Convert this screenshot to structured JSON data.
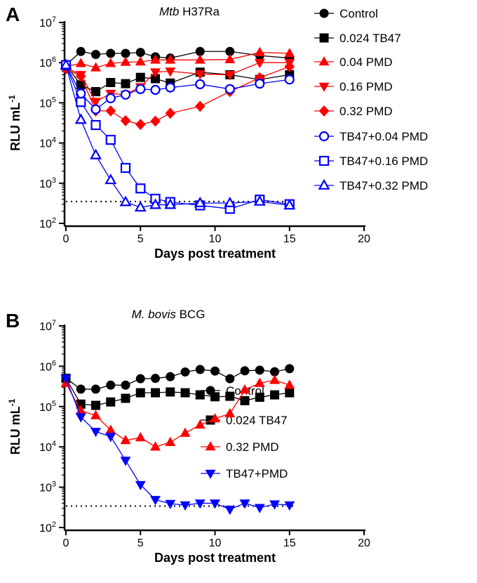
{
  "chart_data": [
    {
      "type": "line",
      "panel_label": "A",
      "title_italic": "Mtb",
      "title_rest": " H37Ra",
      "xlabel": "Days post treatment",
      "ylabel": "RLU mL",
      "ylabel_sup": "-1",
      "yscale": "log",
      "ylim": [
        100,
        10000000
      ],
      "xlim": [
        0,
        20
      ],
      "xticks": [
        0,
        5,
        10,
        15,
        20
      ],
      "yticks_exp": [
        2,
        3,
        4,
        5,
        6,
        7
      ],
      "detection_limit": 350,
      "legend_position": "top-right",
      "series": [
        {
          "name": "Control",
          "color": "#000000",
          "marker": "circle",
          "filled": true,
          "x": [
            0,
            1,
            2,
            3,
            4,
            5,
            6,
            7,
            9,
            11,
            13,
            15
          ],
          "y": [
            870000,
            1900000,
            1600000,
            1700000,
            1700000,
            1800000,
            1400000,
            1300000,
            1900000,
            1900000,
            1500000,
            1300000
          ]
        },
        {
          "name": "0.024 TB47",
          "color": "#000000",
          "marker": "square",
          "filled": true,
          "x": [
            0,
            1,
            2,
            3,
            4,
            5,
            6,
            7,
            9,
            11,
            13,
            15
          ],
          "y": [
            870000,
            280000,
            190000,
            320000,
            300000,
            430000,
            400000,
            310000,
            580000,
            500000,
            380000,
            500000
          ]
        },
        {
          "name": "0.04 PMD",
          "color": "#ff0000",
          "marker": "triangle-up",
          "filled": true,
          "x": [
            0,
            1,
            2,
            3,
            4,
            5,
            6,
            7,
            9,
            11,
            13,
            15
          ],
          "y": [
            800000,
            960000,
            750000,
            960000,
            1030000,
            1050000,
            1170000,
            1170000,
            1170000,
            1200000,
            1800000,
            1700000
          ]
        },
        {
          "name": "0.16 PMD",
          "color": "#ff0000",
          "marker": "triangle-down",
          "filled": true,
          "x": [
            0,
            1,
            2,
            3,
            4,
            5,
            6,
            7,
            9,
            11,
            13,
            15
          ],
          "y": [
            750000,
            500000,
            107000,
            170000,
            160000,
            250000,
            580000,
            610000,
            520000,
            500000,
            1000000,
            1000000
          ]
        },
        {
          "name": "0.32 PMD",
          "color": "#ff0000",
          "marker": "diamond",
          "filled": true,
          "x": [
            0,
            1,
            2,
            3,
            4,
            5,
            6,
            7,
            9,
            11,
            13,
            15
          ],
          "y": [
            700000,
            460000,
            63000,
            63000,
            36000,
            29000,
            35000,
            55000,
            82000,
            190000,
            420000,
            800000
          ]
        },
        {
          "name": "TB47+0.04 PMD",
          "color": "#0000ff",
          "marker": "circle",
          "filled": false,
          "x": [
            0,
            1,
            2,
            3,
            4,
            5,
            6,
            7,
            9,
            11,
            13,
            15
          ],
          "y": [
            870000,
            170000,
            69000,
            130000,
            160000,
            220000,
            210000,
            240000,
            290000,
            220000,
            300000,
            380000
          ]
        },
        {
          "name": "TB47+0.16 PMD",
          "color": "#0000ff",
          "marker": "square",
          "filled": false,
          "x": [
            0,
            1,
            2,
            3,
            4,
            5,
            6,
            7,
            9,
            11,
            13,
            15
          ],
          "y": [
            870000,
            105000,
            28000,
            12000,
            2400,
            740,
            410,
            340,
            280,
            230,
            390,
            300
          ]
        },
        {
          "name": "TB47+0.32 PMD",
          "color": "#0000ff",
          "marker": "triangle-up",
          "filled": false,
          "x": [
            0,
            1,
            2,
            3,
            4,
            5,
            6,
            7,
            9,
            11,
            13,
            15
          ],
          "y": [
            870000,
            38000,
            5000,
            1200,
            340,
            250,
            290,
            290,
            320,
            320,
            350,
            280
          ]
        }
      ]
    },
    {
      "type": "line",
      "panel_label": "B",
      "title_italic": "M. bovis",
      "title_rest": " BCG",
      "xlabel": "Days post treatment",
      "ylabel": "RLU mL",
      "ylabel_sup": "-1",
      "yscale": "log",
      "ylim": [
        100,
        10000000
      ],
      "xlim": [
        0,
        20
      ],
      "xticks": [
        0,
        5,
        10,
        15,
        20
      ],
      "yticks_exp": [
        2,
        3,
        4,
        5,
        6,
        7
      ],
      "detection_limit": 340,
      "legend_position": "right",
      "series": [
        {
          "name": "Control",
          "color": "#000000",
          "marker": "circle",
          "filled": true,
          "x": [
            0,
            1,
            2,
            3,
            4,
            5,
            6,
            7,
            8,
            9,
            10,
            11,
            12,
            13,
            14,
            15
          ],
          "y": [
            500000,
            270000,
            270000,
            340000,
            340000,
            490000,
            500000,
            550000,
            720000,
            830000,
            760000,
            490000,
            770000,
            800000,
            730000,
            870000
          ]
        },
        {
          "name": "0.024 TB47",
          "color": "#000000",
          "marker": "square",
          "filled": true,
          "x": [
            0,
            1,
            2,
            3,
            4,
            5,
            6,
            7,
            8,
            9,
            10,
            11,
            12,
            13,
            14,
            15
          ],
          "y": [
            500000,
            115000,
            107000,
            130000,
            160000,
            220000,
            220000,
            230000,
            220000,
            195000,
            175000,
            180000,
            140000,
            170000,
            195000,
            220000
          ]
        },
        {
          "name": "0.32 PMD",
          "color": "#ff0000",
          "marker": "triangle-up",
          "filled": true,
          "x": [
            0,
            1,
            2,
            3,
            4,
            5,
            6,
            7,
            8,
            9,
            10,
            11,
            12,
            13,
            14,
            15
          ],
          "y": [
            380000,
            79000,
            60000,
            26000,
            14500,
            17000,
            10000,
            13000,
            22000,
            35000,
            50000,
            67000,
            260000,
            380000,
            450000,
            340000
          ]
        },
        {
          "name": "TB47+PMD",
          "color": "#0000ff",
          "marker": "triangle-down",
          "filled": true,
          "x": [
            0,
            1,
            2,
            3,
            4,
            5,
            6,
            7,
            8,
            9,
            10,
            11,
            12,
            13,
            14,
            15
          ],
          "y": [
            500000,
            55000,
            24000,
            18000,
            4600,
            1150,
            490,
            390,
            360,
            400,
            400,
            280,
            400,
            310,
            380,
            360
          ]
        }
      ]
    }
  ]
}
